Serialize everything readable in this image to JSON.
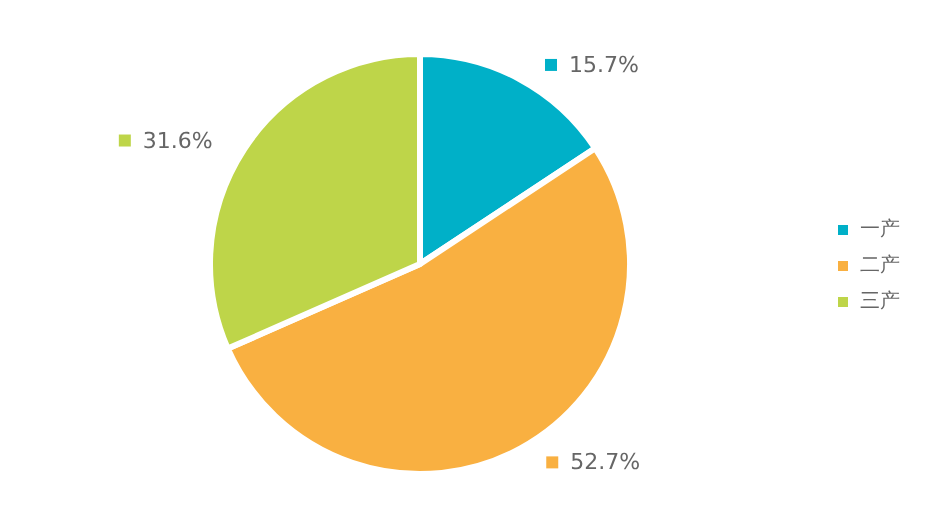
{
  "chart_data": {
    "type": "pie",
    "categories": [
      "一产",
      "二产",
      "三产"
    ],
    "values": [
      15.7,
      52.7,
      31.6
    ],
    "colors": [
      "#00b0c8",
      "#f9b041",
      "#bed549"
    ],
    "value_labels": [
      "15.7%",
      "52.7%",
      "31.6%"
    ],
    "legend": "right"
  }
}
